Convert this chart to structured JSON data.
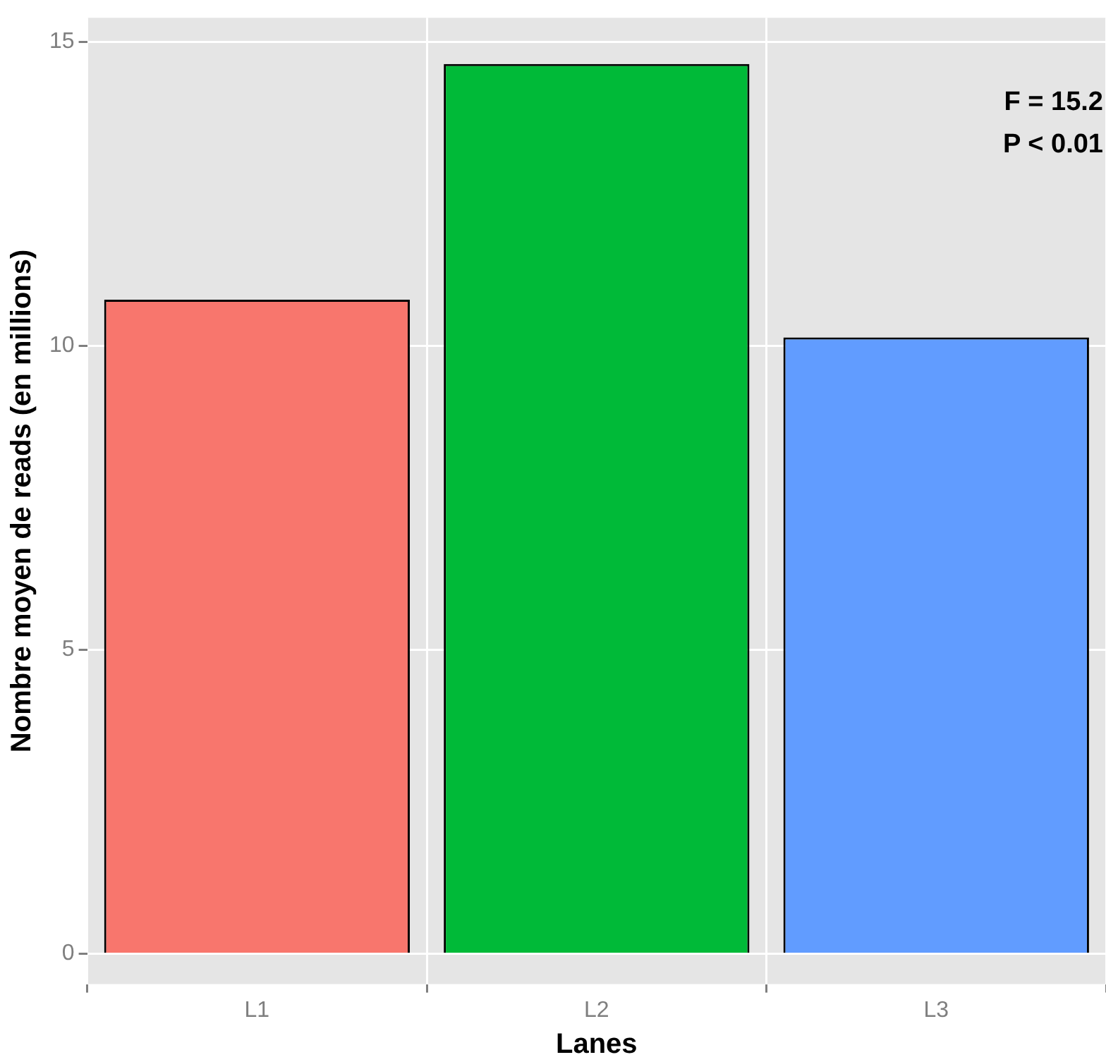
{
  "chart_data": {
    "type": "bar",
    "xlabel": "Lanes",
    "ylabel": "Nombre moyen de reads (en millions)",
    "categories": [
      "L1",
      "L2",
      "L3"
    ],
    "values": [
      10.76,
      14.64,
      10.14
    ],
    "colors": [
      "#f8766d",
      "#00ba38",
      "#619cff"
    ],
    "ylim": [
      -0.5,
      15.4
    ],
    "yticks": [
      0,
      5,
      10,
      15
    ],
    "grid": true,
    "legend": false,
    "annotations": [
      "F = 15.2",
      "P < 0.01"
    ]
  }
}
